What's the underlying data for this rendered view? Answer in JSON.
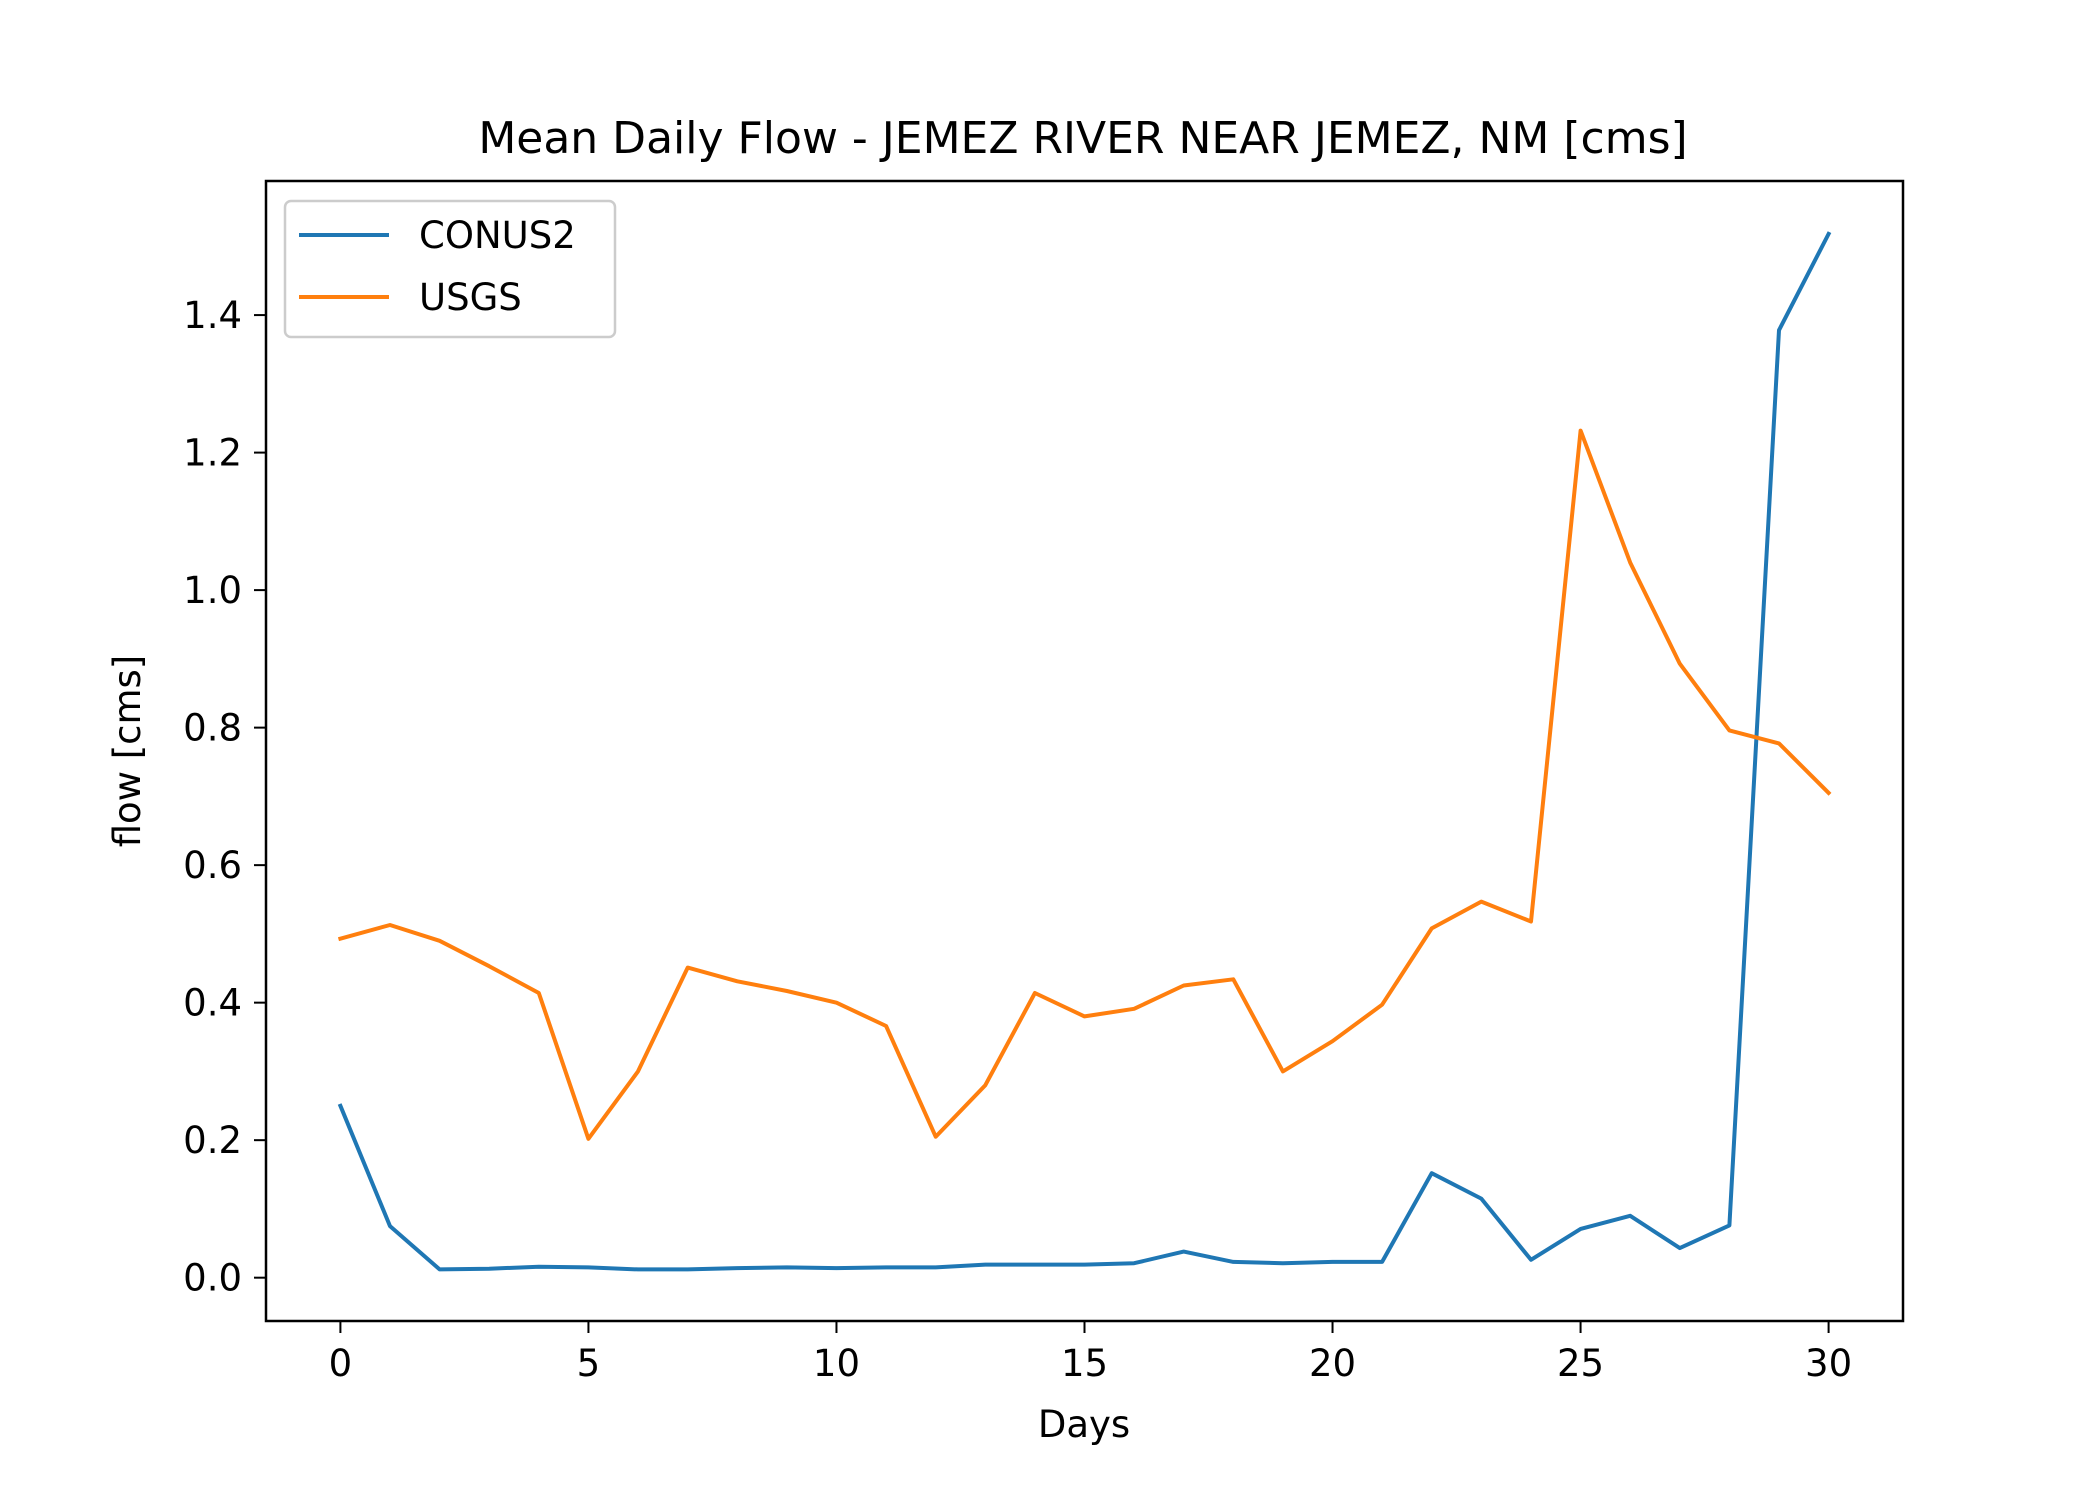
{
  "chart_data": {
    "type": "line",
    "title": "Mean Daily Flow - JEMEZ RIVER NEAR JEMEZ, NM [cms]",
    "xlabel": "Days",
    "ylabel": "flow [cms]",
    "xlim": [
      -1.5,
      31.5
    ],
    "ylim": [
      -0.063,
      1.595
    ],
    "xticks": [
      0,
      5,
      10,
      15,
      20,
      25,
      30
    ],
    "yticks": [
      0.0,
      0.2,
      0.4,
      0.6,
      0.8,
      1.0,
      1.2,
      1.4
    ],
    "xtick_labels": [
      "0",
      "5",
      "10",
      "15",
      "20",
      "25",
      "30"
    ],
    "ytick_labels": [
      "0.0",
      "0.2",
      "0.4",
      "0.6",
      "0.8",
      "1.0",
      "1.2",
      "1.4"
    ],
    "grid": false,
    "legend_position": "upper-left",
    "x": [
      0,
      1,
      2,
      3,
      4,
      5,
      6,
      7,
      8,
      9,
      10,
      11,
      12,
      13,
      14,
      15,
      16,
      17,
      18,
      19,
      20,
      21,
      22,
      23,
      24,
      25,
      26,
      27,
      28,
      29,
      30
    ],
    "series": [
      {
        "name": "CONUS2",
        "color": "#1f77b4",
        "values": [
          0.25,
          0.075,
          0.012,
          0.013,
          0.016,
          0.015,
          0.012,
          0.012,
          0.014,
          0.015,
          0.014,
          0.015,
          0.015,
          0.019,
          0.019,
          0.019,
          0.021,
          0.038,
          0.023,
          0.021,
          0.023,
          0.023,
          0.152,
          0.115,
          0.026,
          0.071,
          0.09,
          0.043,
          0.076,
          1.378,
          1.518
        ]
      },
      {
        "name": "USGS",
        "color": "#ff7f0e",
        "values": [
          0.493,
          0.513,
          0.49,
          0.453,
          0.414,
          0.202,
          0.3,
          0.451,
          0.431,
          0.417,
          0.4,
          0.366,
          0.205,
          0.28,
          0.414,
          0.38,
          0.391,
          0.425,
          0.434,
          0.3,
          0.344,
          0.397,
          0.508,
          0.547,
          0.518,
          1.232,
          1.04,
          0.893,
          0.796,
          0.777,
          0.705
        ]
      }
    ]
  }
}
